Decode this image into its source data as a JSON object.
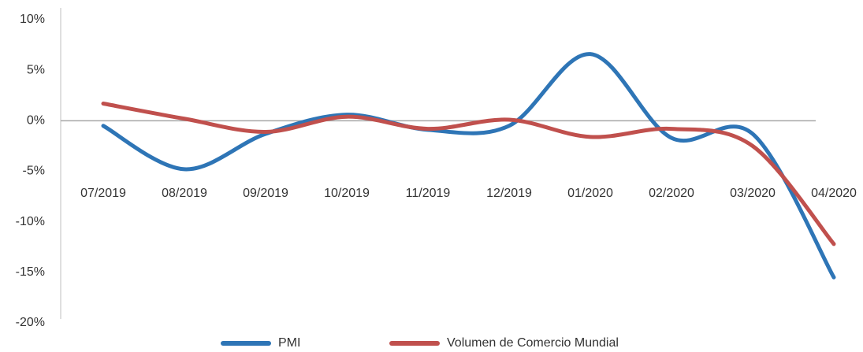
{
  "chart_data": {
    "type": "line",
    "categories": [
      "07/2019",
      "08/2019",
      "09/2019",
      "10/2019",
      "11/2019",
      "12/2019",
      "01/2020",
      "02/2020",
      "03/2020",
      "04/2020"
    ],
    "series": [
      {
        "name": "PMI",
        "color": "#2e75b6",
        "values": [
          -0.5,
          -4.8,
          -1.3,
          0.6,
          -0.9,
          -0.5,
          6.6,
          -1.7,
          -1.3,
          -15.5
        ]
      },
      {
        "name": "Volumen de Comercio Mundial",
        "color": "#c0504d",
        "values": [
          1.7,
          0.2,
          -1.1,
          0.4,
          -0.8,
          0.1,
          -1.6,
          -0.8,
          -2.5,
          -12.2
        ]
      }
    ],
    "ylim": [
      -20,
      10
    ],
    "yticks": [
      {
        "value": -20,
        "label": "-20%"
      },
      {
        "value": -15,
        "label": "-15%"
      },
      {
        "value": -10,
        "label": "-10%"
      },
      {
        "value": -5,
        "label": "-5%"
      },
      {
        "value": 0,
        "label": "0%"
      },
      {
        "value": 5,
        "label": "5%"
      },
      {
        "value": 10,
        "label": "10%"
      }
    ],
    "legend": "bottom"
  }
}
